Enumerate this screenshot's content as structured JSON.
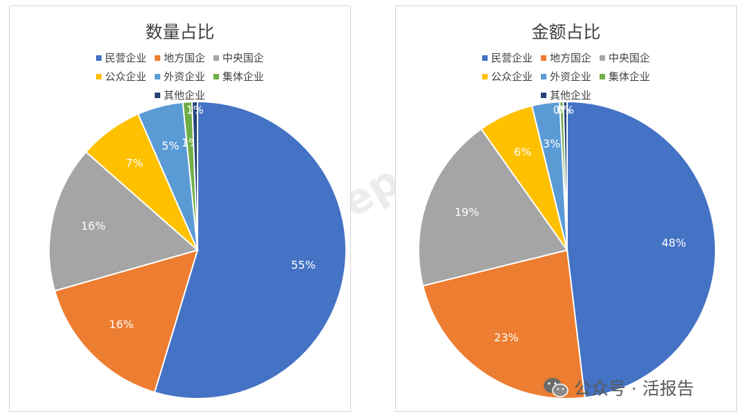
{
  "colors": {
    "民营企业": "#4472c4",
    "地方国企": "#ed7d31",
    "中央国企": "#a5a5a5",
    "公众企业": "#ffc000",
    "外资企业": "#5b9bd5",
    "集体企业": "#70ad47",
    "其他企业": "#264478"
  },
  "chart_data": [
    {
      "type": "pie",
      "title": "数量占比",
      "legend_position": "top",
      "categories": [
        "民营企业",
        "地方国企",
        "中央国企",
        "公众企业",
        "外资企业",
        "集体企业",
        "其他企业"
      ],
      "values": [
        55,
        16,
        16,
        7,
        5,
        1,
        0.6
      ],
      "data_labels": [
        "55%",
        "16%",
        "16%",
        "7%",
        "5%",
        "1%",
        "1%"
      ]
    },
    {
      "type": "pie",
      "title": "金额占比",
      "legend_position": "top",
      "categories": [
        "民营企业",
        "地方国企",
        "中央国企",
        "公众企业",
        "外资企业",
        "集体企业",
        "其他企业"
      ],
      "values": [
        48,
        23,
        19,
        6,
        3,
        0.4,
        0.4
      ],
      "data_labels": [
        "48%",
        "23%",
        "19%",
        "6%",
        "3%",
        "0%",
        "0%"
      ]
    }
  ],
  "watermark": "LiveReport 大數據",
  "brand": "公众号 · 活报告"
}
